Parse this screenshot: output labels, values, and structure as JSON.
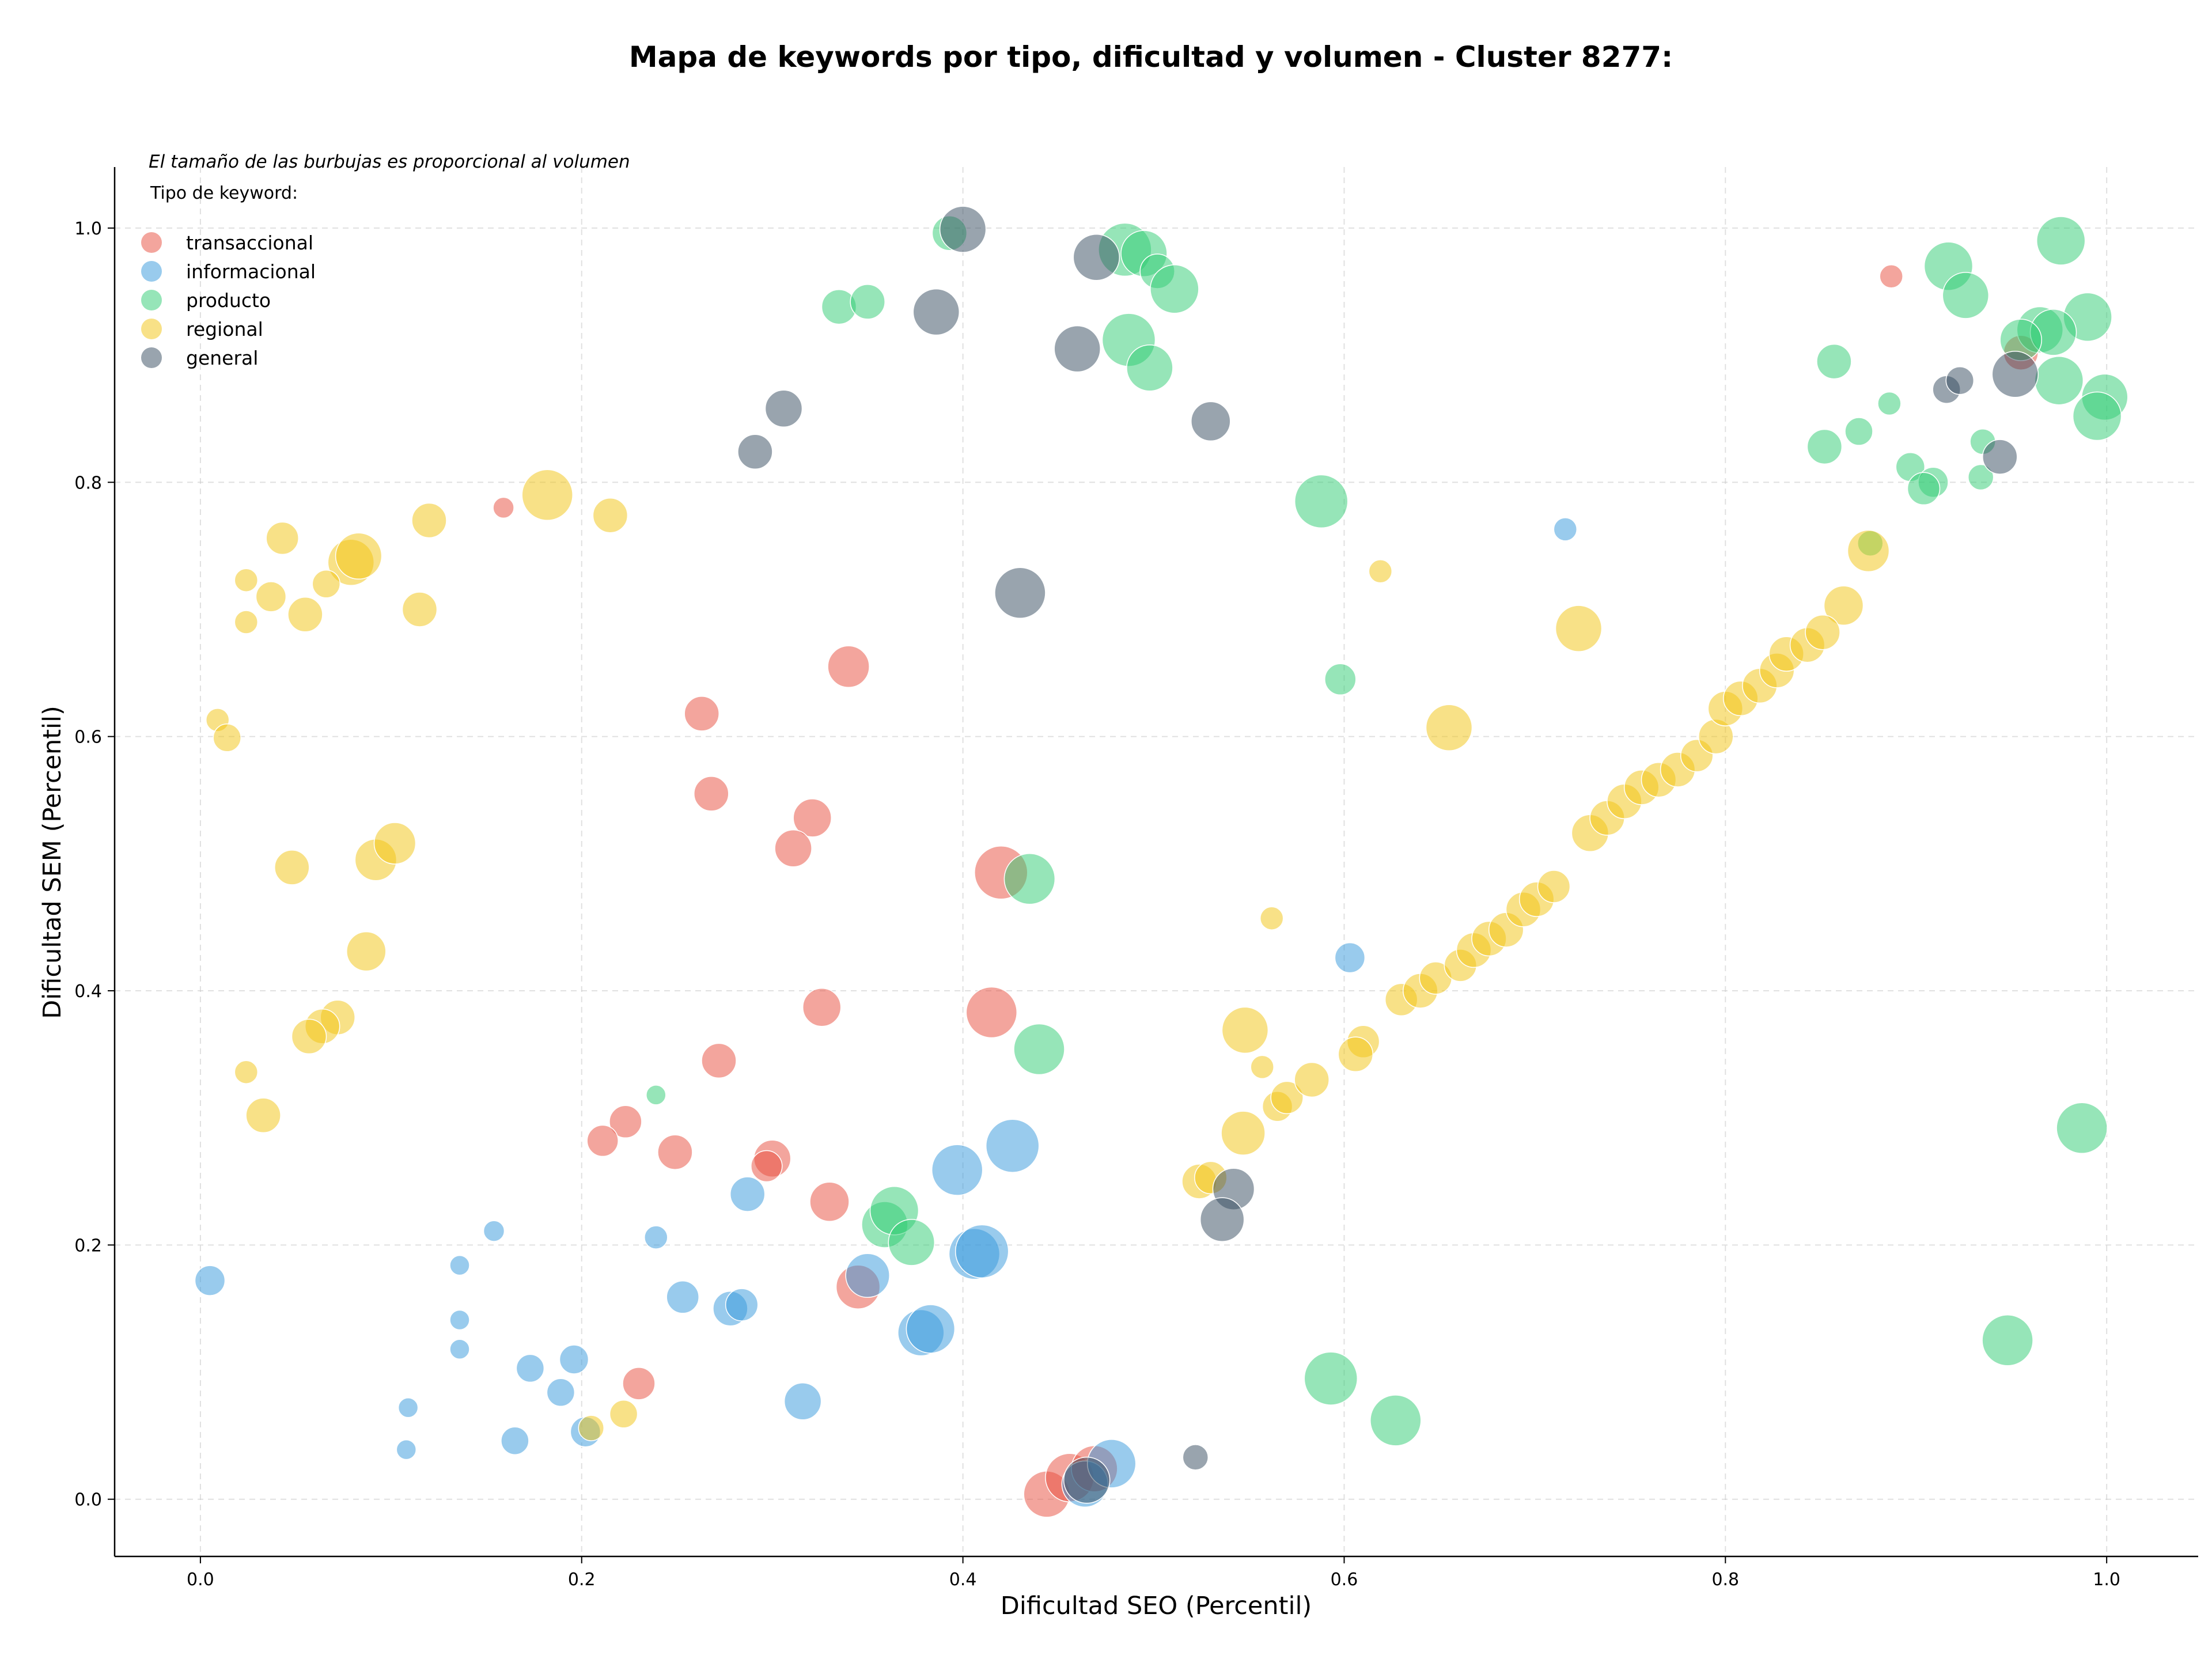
{
  "chart_data": {
    "type": "scatter",
    "title": "Mapa de keywords por tipo, dificultad y volumen - Cluster 8277:",
    "xlabel": "Dificultad SEO (Percentil)",
    "ylabel": "Dificultad SEM (Percentil)",
    "xlim": [
      -0.045,
      1.048
    ],
    "ylim": [
      -0.045,
      1.048
    ],
    "xticks": [
      0.0,
      0.2,
      0.4,
      0.6,
      0.8,
      1.0
    ],
    "yticks": [
      0.0,
      0.2,
      0.4,
      0.6,
      0.8,
      1.0
    ],
    "grid": true,
    "legend_position": "top-left",
    "size_note": "El tamaño de las burbujas es proporcional al volumen",
    "legend_title": "Tipo de keyword:",
    "series": [
      {
        "name": "transaccional",
        "color": "#e74c3c",
        "points": [
          [
            0.159,
            0.78,
            18
          ],
          [
            0.887,
            0.962,
            20
          ],
          [
            0.955,
            0.902,
            30
          ],
          [
            0.34,
            0.655,
            36
          ],
          [
            0.263,
            0.618,
            30
          ],
          [
            0.268,
            0.555,
            30
          ],
          [
            0.321,
            0.536,
            33
          ],
          [
            0.311,
            0.512,
            32
          ],
          [
            0.42,
            0.493,
            46
          ],
          [
            0.415,
            0.383,
            44
          ],
          [
            0.326,
            0.387,
            33
          ],
          [
            0.272,
            0.345,
            30
          ],
          [
            0.223,
            0.297,
            28
          ],
          [
            0.211,
            0.282,
            27
          ],
          [
            0.249,
            0.273,
            30
          ],
          [
            0.3,
            0.268,
            32
          ],
          [
            0.297,
            0.262,
            27
          ],
          [
            0.33,
            0.234,
            34
          ],
          [
            0.345,
            0.167,
            38
          ],
          [
            0.23,
            0.091,
            28
          ],
          [
            0.444,
            0.004,
            40
          ],
          [
            0.456,
            0.017,
            42
          ],
          [
            0.469,
            0.024,
            40
          ]
        ]
      },
      {
        "name": "informacional",
        "color": "#3498db",
        "points": [
          [
            0.716,
            0.763,
            20
          ],
          [
            0.603,
            0.426,
            26
          ],
          [
            0.426,
            0.278,
            46
          ],
          [
            0.397,
            0.259,
            44
          ],
          [
            0.287,
            0.24,
            30
          ],
          [
            0.154,
            0.211,
            18
          ],
          [
            0.239,
            0.206,
            20
          ],
          [
            0.005,
            0.172,
            26
          ],
          [
            0.136,
            0.184,
            17
          ],
          [
            0.136,
            0.141,
            17
          ],
          [
            0.136,
            0.118,
            17
          ],
          [
            0.173,
            0.103,
            24
          ],
          [
            0.196,
            0.11,
            25
          ],
          [
            0.189,
            0.084,
            24
          ],
          [
            0.165,
            0.046,
            24
          ],
          [
            0.109,
            0.072,
            17
          ],
          [
            0.108,
            0.039,
            17
          ],
          [
            0.202,
            0.053,
            26
          ],
          [
            0.253,
            0.159,
            28
          ],
          [
            0.278,
            0.15,
            30
          ],
          [
            0.284,
            0.153,
            28
          ],
          [
            0.316,
            0.077,
            32
          ],
          [
            0.35,
            0.176,
            38
          ],
          [
            0.378,
            0.131,
            40
          ],
          [
            0.383,
            0.134,
            42
          ],
          [
            0.406,
            0.193,
            44
          ],
          [
            0.41,
            0.195,
            46
          ],
          [
            0.464,
            0.012,
            40
          ],
          [
            0.478,
            0.028,
            42
          ]
        ]
      },
      {
        "name": "producto",
        "color": "#2ecc71",
        "points": [
          [
            0.393,
            0.996,
            30
          ],
          [
            0.485,
            0.983,
            46
          ],
          [
            0.495,
            0.98,
            40
          ],
          [
            0.502,
            0.966,
            30
          ],
          [
            0.511,
            0.952,
            42
          ],
          [
            0.335,
            0.938,
            30
          ],
          [
            0.35,
            0.942,
            30
          ],
          [
            0.487,
            0.912,
            46
          ],
          [
            0.498,
            0.89,
            40
          ],
          [
            0.588,
            0.785,
            46
          ],
          [
            0.598,
            0.645,
            27
          ],
          [
            0.435,
            0.488,
            44
          ],
          [
            0.44,
            0.354,
            44
          ],
          [
            0.239,
            0.318,
            17
          ],
          [
            0.359,
            0.216,
            40
          ],
          [
            0.364,
            0.227,
            42
          ],
          [
            0.373,
            0.202,
            40
          ],
          [
            0.593,
            0.095,
            46
          ],
          [
            0.627,
            0.062,
            44
          ],
          [
            0.976,
            0.99,
            42
          ],
          [
            0.917,
            0.97,
            42
          ],
          [
            0.926,
            0.947,
            40
          ],
          [
            0.965,
            0.92,
            40
          ],
          [
            0.99,
            0.93,
            42
          ],
          [
            0.972,
            0.918,
            40
          ],
          [
            0.955,
            0.912,
            36
          ],
          [
            0.975,
            0.88,
            42
          ],
          [
            0.999,
            0.867,
            40
          ],
          [
            0.995,
            0.852,
            42
          ],
          [
            0.857,
            0.895,
            30
          ],
          [
            0.852,
            0.828,
            30
          ],
          [
            0.87,
            0.84,
            24
          ],
          [
            0.886,
            0.862,
            20
          ],
          [
            0.935,
            0.832,
            22
          ],
          [
            0.897,
            0.812,
            25
          ],
          [
            0.909,
            0.8,
            26
          ],
          [
            0.904,
            0.795,
            28
          ],
          [
            0.934,
            0.804,
            22
          ],
          [
            0.987,
            0.292,
            44
          ],
          [
            0.948,
            0.125,
            44
          ],
          [
            0.876,
            0.752,
            22
          ]
        ]
      },
      {
        "name": "regional",
        "color": "#f1c40f",
        "points": [
          [
            0.182,
            0.79,
            44
          ],
          [
            0.215,
            0.774,
            30
          ],
          [
            0.12,
            0.77,
            30
          ],
          [
            0.043,
            0.756,
            28
          ],
          [
            0.079,
            0.737,
            40
          ],
          [
            0.083,
            0.742,
            40
          ],
          [
            0.024,
            0.723,
            20
          ],
          [
            0.037,
            0.71,
            26
          ],
          [
            0.066,
            0.72,
            24
          ],
          [
            0.055,
            0.696,
            30
          ],
          [
            0.024,
            0.69,
            20
          ],
          [
            0.115,
            0.7,
            30
          ],
          [
            0.009,
            0.613,
            20
          ],
          [
            0.014,
            0.599,
            24
          ],
          [
            0.048,
            0.497,
            30
          ],
          [
            0.092,
            0.503,
            36
          ],
          [
            0.102,
            0.516,
            36
          ],
          [
            0.087,
            0.431,
            34
          ],
          [
            0.072,
            0.379,
            30
          ],
          [
            0.064,
            0.372,
            30
          ],
          [
            0.057,
            0.364,
            30
          ],
          [
            0.024,
            0.336,
            20
          ],
          [
            0.033,
            0.302,
            30
          ],
          [
            0.222,
            0.067,
            24
          ],
          [
            0.205,
            0.056,
            22
          ],
          [
            0.619,
            0.73,
            20
          ],
          [
            0.562,
            0.457,
            20
          ],
          [
            0.655,
            0.607,
            40
          ],
          [
            0.723,
            0.685,
            40
          ],
          [
            0.875,
            0.746,
            36
          ],
          [
            0.862,
            0.703,
            34
          ],
          [
            0.548,
            0.369,
            40
          ],
          [
            0.557,
            0.34,
            20
          ],
          [
            0.547,
            0.288,
            38
          ],
          [
            0.524,
            0.25,
            30
          ],
          [
            0.53,
            0.253,
            28
          ],
          [
            0.565,
            0.309,
            26
          ],
          [
            0.57,
            0.316,
            28
          ],
          [
            0.583,
            0.33,
            30
          ],
          [
            0.61,
            0.36,
            28
          ],
          [
            0.606,
            0.35,
            30
          ],
          [
            0.63,
            0.393,
            28
          ],
          [
            0.64,
            0.4,
            30
          ],
          [
            0.648,
            0.41,
            28
          ],
          [
            0.661,
            0.42,
            28
          ],
          [
            0.668,
            0.432,
            30
          ],
          [
            0.676,
            0.441,
            30
          ],
          [
            0.685,
            0.448,
            30
          ],
          [
            0.694,
            0.464,
            30
          ],
          [
            0.701,
            0.472,
            30
          ],
          [
            0.71,
            0.482,
            28
          ],
          [
            0.729,
            0.524,
            32
          ],
          [
            0.738,
            0.536,
            30
          ],
          [
            0.747,
            0.549,
            30
          ],
          [
            0.756,
            0.56,
            30
          ],
          [
            0.765,
            0.566,
            30
          ],
          [
            0.775,
            0.574,
            30
          ],
          [
            0.785,
            0.585,
            28
          ],
          [
            0.795,
            0.6,
            30
          ],
          [
            0.8,
            0.622,
            30
          ],
          [
            0.808,
            0.63,
            30
          ],
          [
            0.818,
            0.64,
            30
          ],
          [
            0.827,
            0.652,
            30
          ],
          [
            0.832,
            0.665,
            30
          ],
          [
            0.843,
            0.672,
            30
          ],
          [
            0.851,
            0.682,
            30
          ]
        ]
      },
      {
        "name": "general",
        "color": "#34495e",
        "points": [
          [
            0.4,
            0.999,
            40
          ],
          [
            0.47,
            0.977,
            40
          ],
          [
            0.386,
            0.934,
            40
          ],
          [
            0.46,
            0.905,
            40
          ],
          [
            0.53,
            0.848,
            34
          ],
          [
            0.306,
            0.858,
            32
          ],
          [
            0.291,
            0.824,
            30
          ],
          [
            0.43,
            0.713,
            44
          ],
          [
            0.542,
            0.244,
            36
          ],
          [
            0.536,
            0.22,
            38
          ],
          [
            0.522,
            0.033,
            22
          ],
          [
            0.916,
            0.873,
            24
          ],
          [
            0.923,
            0.88,
            24
          ],
          [
            0.952,
            0.885,
            40
          ],
          [
            0.944,
            0.82,
            30
          ],
          [
            0.465,
            0.015,
            40
          ]
        ]
      }
    ]
  }
}
